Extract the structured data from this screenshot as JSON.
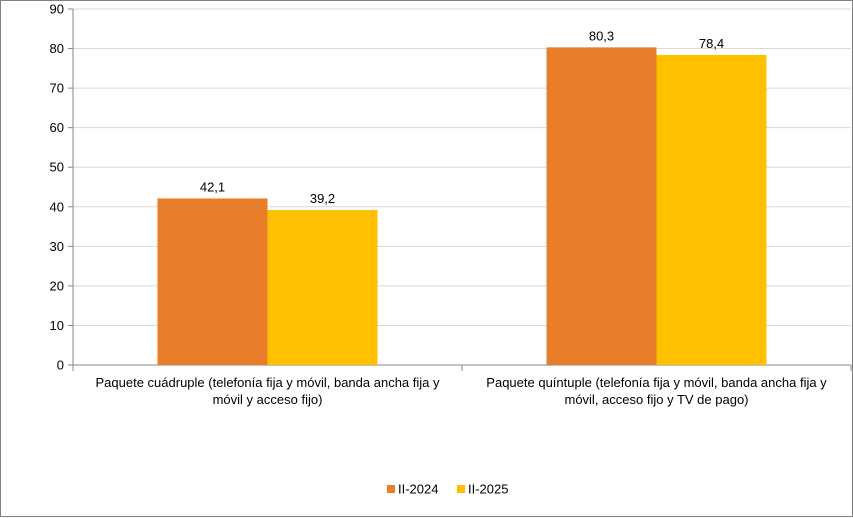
{
  "chart_data": {
    "type": "bar",
    "title": "",
    "xlabel": "",
    "ylabel": "",
    "ylim": [
      0,
      90
    ],
    "yticks": [
      0,
      10,
      20,
      30,
      40,
      50,
      60,
      70,
      80,
      90
    ],
    "grid": true,
    "legend_position": "bottom",
    "categories": [
      [
        "Paquete cuádruple (telefonía fija y móvil, banda ancha fija y",
        "móvil y acceso fijo)"
      ],
      [
        "Paquete quíntuple (telefonía fija y móvil, banda ancha fija y",
        "móvil, acceso fijo y TV de pago)"
      ]
    ],
    "series": [
      {
        "name": "II-2024",
        "color": "#E87D2A",
        "values": [
          42.1,
          80.3
        ],
        "labels": [
          "42,1",
          "80,3"
        ]
      },
      {
        "name": "II-2025",
        "color": "#FFC000",
        "values": [
          39.2,
          78.4
        ],
        "labels": [
          "39,2",
          "78,4"
        ]
      }
    ]
  }
}
